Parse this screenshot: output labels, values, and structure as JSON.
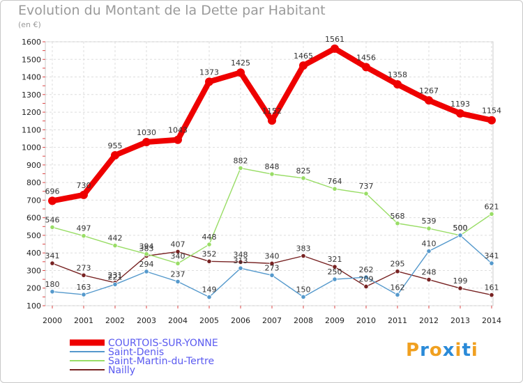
{
  "header": {
    "title": "Evolution du Montant de la Dette par Habitant",
    "unit": "(en €)"
  },
  "logo": {
    "letters": [
      "P",
      "r",
      "o",
      "x",
      "i",
      "t",
      "i"
    ],
    "colors": [
      "#f0a020",
      "#2a8ad8",
      "#f0a020",
      "#2a8ad8",
      "#f0a020",
      "#2a8ad8",
      "#f0a020"
    ]
  },
  "chart_data": {
    "type": "line",
    "title": "Evolution du Montant de la Dette par Habitant",
    "ylabel": "(en €)",
    "ylim": [
      100,
      1600
    ],
    "yticks": [
      100,
      200,
      300,
      400,
      500,
      600,
      700,
      800,
      900,
      1000,
      1100,
      1200,
      1300,
      1400,
      1500,
      1600
    ],
    "x": [
      "2000",
      "2001",
      "2002",
      "2003",
      "2004",
      "2005",
      "2006",
      "2007",
      "2008",
      "2009",
      "2010",
      "2011",
      "2012",
      "2013",
      "2014"
    ],
    "grid": true,
    "legend_position": "bottom-left",
    "series": [
      {
        "name": "COURTOIS-SUR-YONNE",
        "color": "#ee0000",
        "values": [
          696,
          730,
          955,
          1030,
          1043,
          1373,
          1425,
          1152,
          1465,
          1561,
          1456,
          1358,
          1267,
          1193,
          1154
        ]
      },
      {
        "name": "Saint-Denis",
        "color": "#5599cc",
        "values": [
          180,
          163,
          221,
          294,
          237,
          149,
          313,
          273,
          150,
          250,
          262,
          162,
          410,
          500,
          341
        ]
      },
      {
        "name": "Saint-Martin-du-Tertre",
        "color": "#99dd66",
        "values": [
          546,
          497,
          442,
          394,
          340,
          448,
          882,
          848,
          825,
          764,
          737,
          568,
          539,
          500,
          621
        ]
      },
      {
        "name": "Nailly",
        "color": "#772222",
        "values": [
          341,
          273,
          231,
          383,
          407,
          352,
          348,
          340,
          383,
          321,
          209,
          295,
          248,
          199,
          161
        ]
      }
    ]
  }
}
